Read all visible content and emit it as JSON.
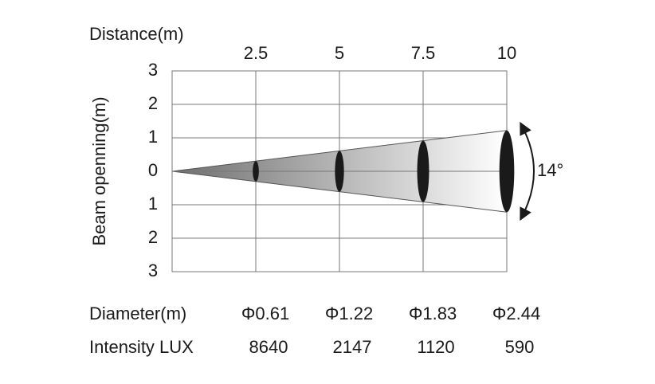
{
  "chart_data": {
    "type": "beam",
    "x_label": "Distance(m)",
    "y_label": "Beam openning(m)",
    "xlim": [
      0,
      10
    ],
    "ylim": [
      -3,
      3
    ],
    "xticks": [
      2.5,
      5,
      7.5,
      10
    ],
    "yticks": [
      {
        "value": -3,
        "label": "3"
      },
      {
        "value": -2,
        "label": "2"
      },
      {
        "value": -1,
        "label": "1"
      },
      0,
      1,
      2,
      3
    ],
    "grid": true,
    "x": [
      2.5,
      5,
      7.5,
      10
    ],
    "annotation": "14°",
    "diameter": {
      "label": "Diameter(m)",
      "values": [
        0.61,
        1.22,
        1.83,
        2.44
      ],
      "value_labels": [
        "Φ0.61",
        "Φ1.22",
        "Φ1.83",
        "Φ2.44"
      ]
    },
    "intensity": {
      "label": "Intensity LUX",
      "values": [
        8640,
        2147,
        1120,
        590
      ]
    }
  }
}
